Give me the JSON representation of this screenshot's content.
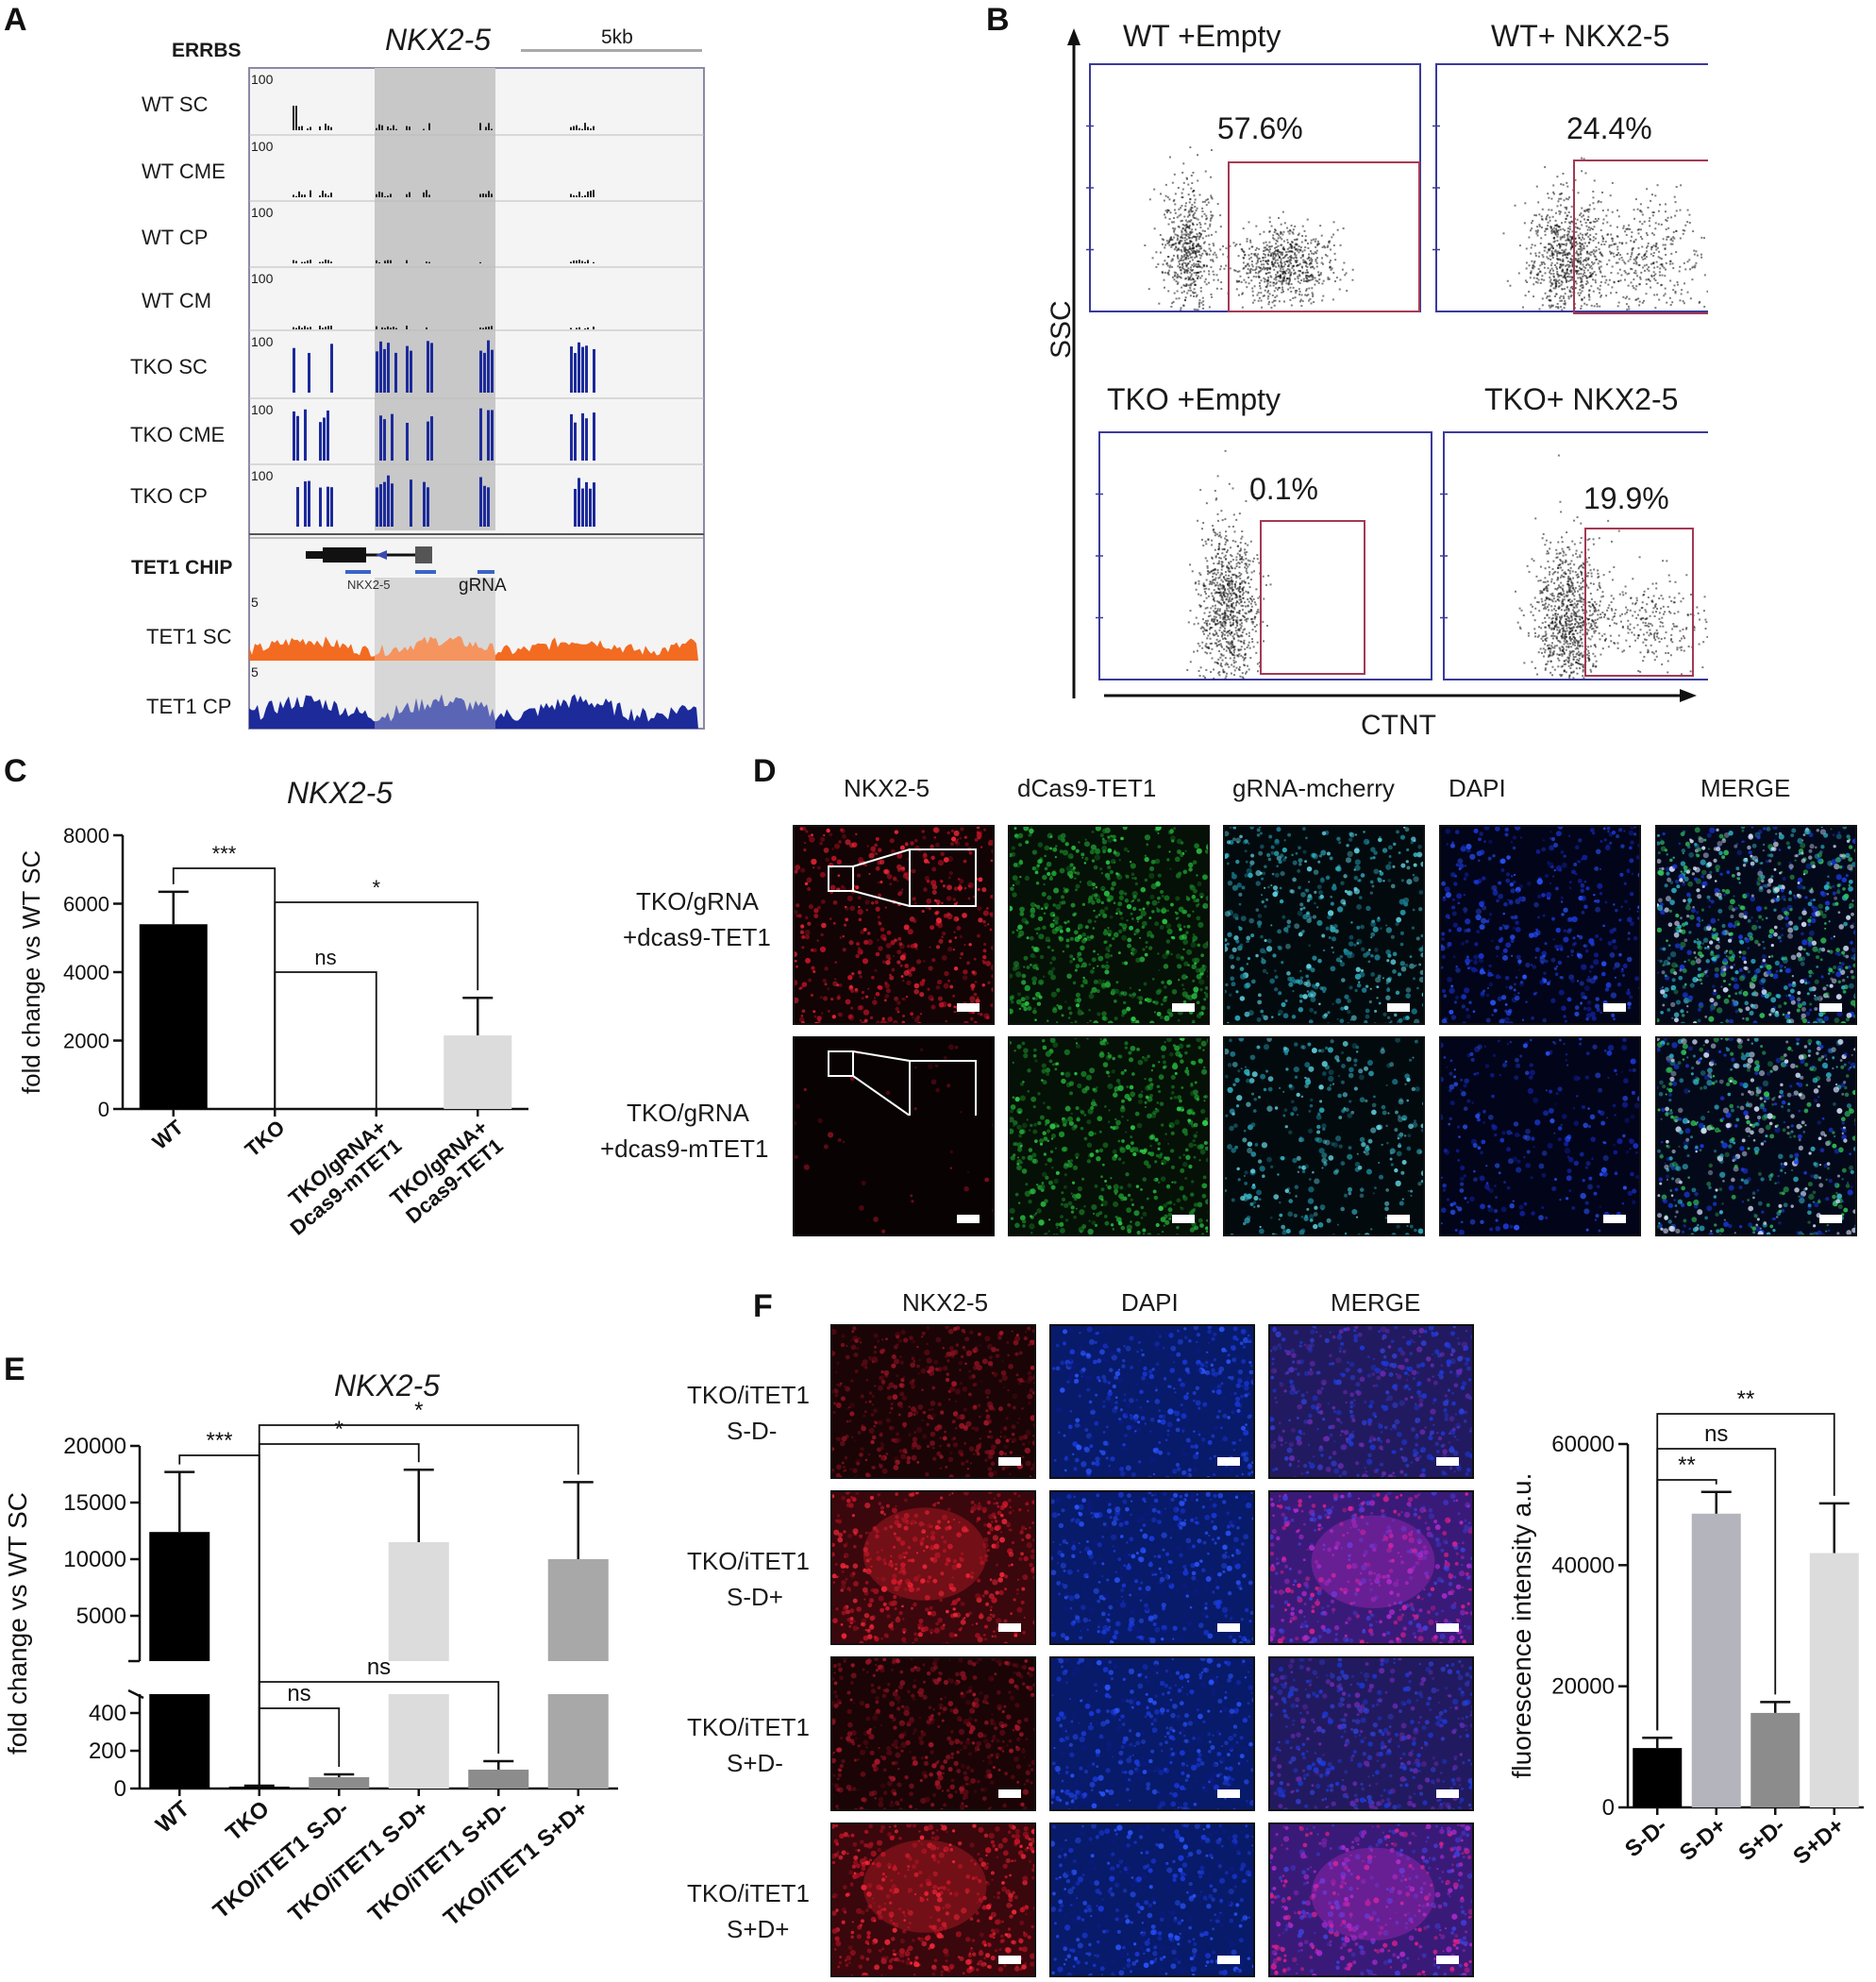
{
  "panels": {
    "A": "A",
    "B": "B",
    "C": "C",
    "D": "D",
    "E": "E",
    "F": "F"
  },
  "panelA": {
    "section_label": "ERRBS",
    "gene": "NKX2-5",
    "scale_label": "5kb",
    "tracks": [
      "WT SC",
      "WT CME",
      "WT CP",
      "WT CM",
      "TKO SC",
      "TKO CME",
      "TKO CP"
    ],
    "track_max": "100",
    "chip_label": "TET1 CHIP",
    "gene_model_label": "NKX2-5",
    "grna_label": "gRNA",
    "chip_tracks": [
      "TET1 SC",
      "TET1 CP"
    ],
    "chip_max": "5",
    "colors": {
      "wt": "#222222",
      "tko": "#1c2a9a",
      "tet1_sc": "#f26b21",
      "tet1_cp": "#1c2a9a",
      "highlight": "#c8c8c8"
    }
  },
  "panelB": {
    "plots": [
      {
        "title": "WT +Empty",
        "percent": "57.6%"
      },
      {
        "title": "WT+ NKX2-5",
        "percent": "24.4%"
      },
      {
        "title": "TKO +Empty",
        "percent": "0.1%"
      },
      {
        "title": "TKO+ NKX2-5",
        "percent": "19.9%"
      }
    ],
    "y_axis": "SSC",
    "x_axis": "CTNT",
    "colors": {
      "frame": "#3a3a9a",
      "gate": "#a33a55"
    }
  },
  "panelD": {
    "columns": [
      "NKX2-5",
      "dCas9-TET1",
      "gRNA-mcherry",
      "DAPI",
      "MERGE"
    ],
    "rows": [
      {
        "line1": "TKO/gRNA",
        "line2": "+dcas9-TET1"
      },
      {
        "line1": "TKO/gRNA",
        "line2": "+dcas9-mTET1"
      }
    ]
  },
  "panelF": {
    "columns": [
      "NKX2-5",
      "DAPI",
      "MERGE"
    ],
    "rows": [
      {
        "line1": "TKO/iTET1",
        "line2": "S-D-"
      },
      {
        "line1": "TKO/iTET1",
        "line2": "S-D+"
      },
      {
        "line1": "TKO/iTET1",
        "line2": "S+D-"
      },
      {
        "line1": "TKO/iTET1",
        "line2": "S+D+"
      }
    ]
  },
  "chart_data": [
    {
      "id": "C",
      "type": "bar",
      "title": "NKX2-5",
      "ylabel": "fold change vs WT SC",
      "xlabel": "",
      "categories": [
        "WT",
        "TKO",
        "TKO/gRNA+\nDcas9-mTET1",
        "TKO/gRNA+\nDcas9-TET1"
      ],
      "values": [
        5400,
        0,
        0,
        2150
      ],
      "errors": [
        950,
        0,
        0,
        1100
      ],
      "colors": [
        "#000000",
        "#000000",
        "#000000",
        "#dcdcdc"
      ],
      "ylim": [
        0,
        8000
      ],
      "yticks": [
        "0",
        "2000",
        "4000",
        "6000",
        "8000"
      ],
      "significance": [
        {
          "label": "***",
          "from": 0,
          "to": 1
        },
        {
          "label": "*",
          "from": 1,
          "to": 3
        },
        {
          "label": "ns",
          "from": 1,
          "to": 2
        }
      ]
    },
    {
      "id": "E",
      "type": "bar",
      "title": "NKX2-5",
      "ylabel": "fold change vs WT SC",
      "xlabel": "",
      "broken_axis": true,
      "categories": [
        "WT",
        "TKO",
        "TKO/iTET1 S-D-",
        "TKO/iTET1 S-D+",
        "TKO/iTET1 S+D-",
        "TKO/iTET1 S+D+"
      ],
      "values": [
        12400,
        10,
        60,
        11500,
        100,
        10000
      ],
      "errors": [
        5300,
        5,
        15,
        6400,
        45,
        6800
      ],
      "colors": [
        "#000000",
        "#000000",
        "#8c8c8c",
        "#dcdcdc",
        "#8c8c8c",
        "#a8a8a8"
      ],
      "ylim_lower": [
        0,
        500
      ],
      "ylim_upper": [
        1000,
        20000
      ],
      "yticks_lower": [
        "0",
        "200",
        "400"
      ],
      "yticks_upper": [
        "5000",
        "10000",
        "15000",
        "20000"
      ],
      "significance": [
        {
          "label": "***",
          "from": 0,
          "to": 1
        },
        {
          "label": "*",
          "from": 1,
          "to": 3
        },
        {
          "label": "*",
          "from": 1,
          "to": 5
        },
        {
          "label": "ns",
          "from": 1,
          "to": 2
        },
        {
          "label": "ns",
          "from": 1,
          "to": 4
        }
      ]
    },
    {
      "id": "F",
      "type": "bar",
      "title": "",
      "ylabel": "fluorescence intensity a.u.",
      "xlabel": "",
      "categories": [
        "S-D-",
        "S-D+",
        "S+D-",
        "S+D+"
      ],
      "values": [
        9800,
        48500,
        15600,
        42000
      ],
      "errors": [
        1700,
        3600,
        1800,
        8200
      ],
      "colors": [
        "#000000",
        "#b4b4bc",
        "#8c8c8c",
        "#dcdcdc"
      ],
      "ylim": [
        0,
        60000
      ],
      "yticks": [
        "0",
        "20000",
        "40000",
        "60000"
      ],
      "significance": [
        {
          "label": "**",
          "from": 0,
          "to": 1
        },
        {
          "label": "ns",
          "from": 0,
          "to": 2
        },
        {
          "label": "**",
          "from": 0,
          "to": 3
        }
      ]
    }
  ]
}
